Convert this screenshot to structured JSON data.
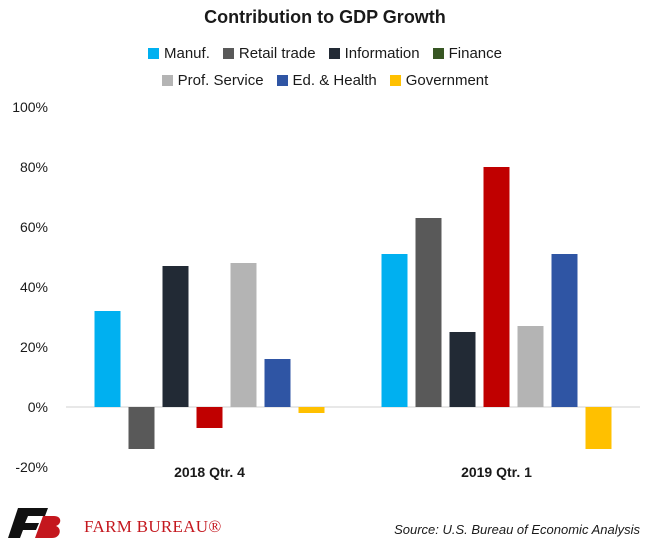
{
  "chart_data": {
    "type": "bar",
    "title": "Contribution to GDP Growth",
    "categories": [
      "2018 Qtr. 4",
      "2019 Qtr. 1"
    ],
    "series": [
      {
        "name": "Manuf.",
        "color": "#00b0f0",
        "values": [
          32,
          51
        ]
      },
      {
        "name": "Retail trade",
        "color": "#595959",
        "values": [
          -14,
          63
        ]
      },
      {
        "name": "Information",
        "color": "#222a35",
        "values": [
          47,
          25
        ]
      },
      {
        "name": "Finance",
        "color": "#c00000",
        "legend_color": "#375623",
        "values": [
          -7,
          80
        ]
      },
      {
        "name": "Prof. Service",
        "color": "#b4b4b4",
        "values": [
          48,
          27
        ]
      },
      {
        "name": "Ed. & Health",
        "color": "#2f55a4",
        "values": [
          16,
          51
        ]
      },
      {
        "name": "Government",
        "color": "#ffc000",
        "values": [
          -2,
          -14
        ]
      }
    ],
    "ylim": [
      -20,
      100
    ],
    "yticks": [
      "-20%",
      "0%",
      "20%",
      "40%",
      "60%",
      "80%",
      "100%"
    ],
    "ytick_values": [
      -20,
      0,
      20,
      40,
      60,
      80,
      100
    ],
    "xlabel": "",
    "ylabel": "",
    "grid": false,
    "legend_position": "top"
  },
  "footer": {
    "logo_letters": "FB",
    "brand": "FARM BUREAU®",
    "source": "Source: U.S. Bureau of Economic Analysis"
  }
}
